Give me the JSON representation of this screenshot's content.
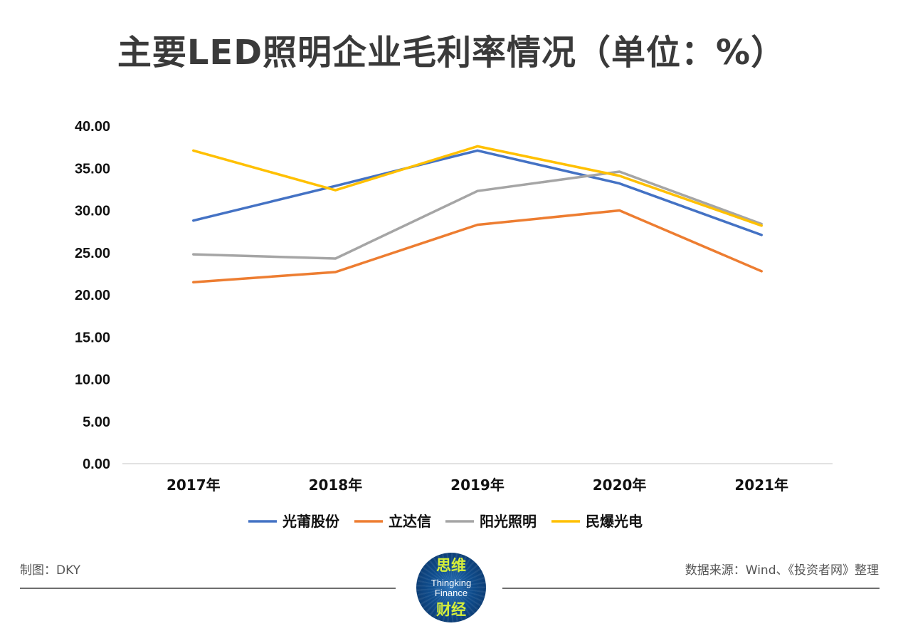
{
  "chart_data": {
    "type": "line",
    "title": "主要LED照明企业毛利率情况（单位：%）",
    "categories": [
      "2017年",
      "2018年",
      "2019年",
      "2020年",
      "2021年"
    ],
    "y_ticks": [
      "0.00",
      "5.00",
      "10.00",
      "15.00",
      "20.00",
      "25.00",
      "30.00",
      "35.00",
      "40.00"
    ],
    "ylim": [
      0,
      40
    ],
    "grid": false,
    "legend_position": "bottom",
    "series": [
      {
        "name": "光莆股份",
        "color": "#4472C4",
        "values": [
          28.8,
          32.9,
          37.1,
          33.2,
          27.1
        ]
      },
      {
        "name": "立达信",
        "color": "#ED7D31",
        "values": [
          21.5,
          22.7,
          28.3,
          30.0,
          22.8
        ]
      },
      {
        "name": "阳光照明",
        "color": "#A5A5A5",
        "values": [
          24.8,
          24.3,
          32.3,
          34.6,
          28.4
        ]
      },
      {
        "name": "民爆光电",
        "color": "#FFC000",
        "values": [
          37.1,
          32.4,
          37.6,
          34.1,
          28.2
        ]
      }
    ]
  },
  "footer": {
    "left": "制图：DKY",
    "right": "数据来源：Wind、《投资者网》整理"
  },
  "logo": {
    "top": "思维",
    "line1": "Thingking",
    "line2": "Finance",
    "bottom": "财经"
  }
}
